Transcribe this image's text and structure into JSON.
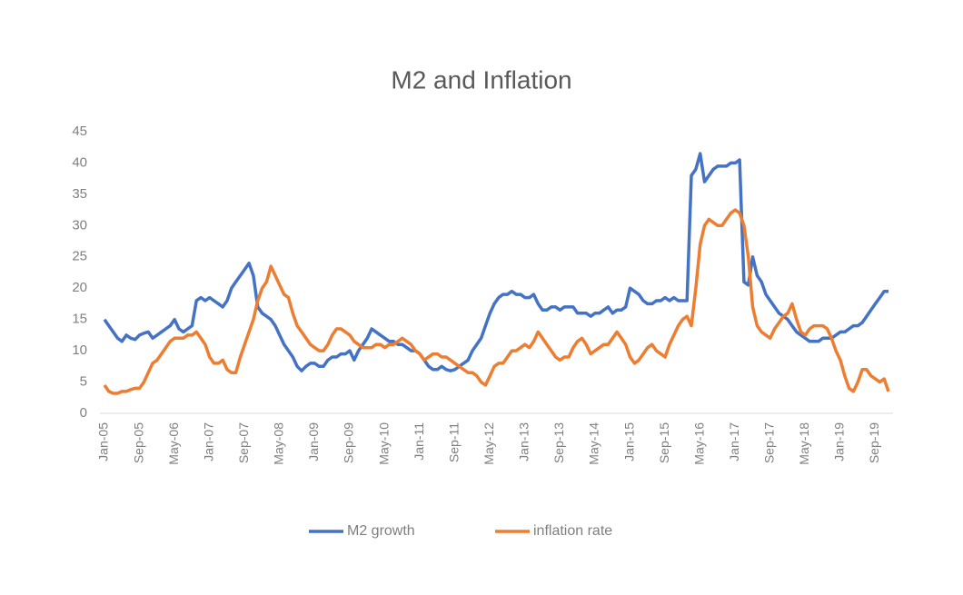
{
  "chart_data": {
    "type": "line",
    "title": "M2 and Inflation",
    "categories": [
      "Jan-05",
      null,
      null,
      null,
      null,
      null,
      null,
      null,
      "Sep-05",
      null,
      null,
      null,
      null,
      null,
      null,
      null,
      "May-06",
      null,
      null,
      null,
      null,
      null,
      null,
      null,
      "Jan-07",
      null,
      null,
      null,
      null,
      null,
      null,
      null,
      "Sep-07",
      null,
      null,
      null,
      null,
      null,
      null,
      null,
      "May-08",
      null,
      null,
      null,
      null,
      null,
      null,
      null,
      "Jan-09",
      null,
      null,
      null,
      null,
      null,
      null,
      null,
      "Sep-09",
      null,
      null,
      null,
      null,
      null,
      null,
      null,
      "May-10",
      null,
      null,
      null,
      null,
      null,
      null,
      null,
      "Jan-11",
      null,
      null,
      null,
      null,
      null,
      null,
      null,
      "Sep-11",
      null,
      null,
      null,
      null,
      null,
      null,
      null,
      "May-12",
      null,
      null,
      null,
      null,
      null,
      null,
      null,
      "Jan-13",
      null,
      null,
      null,
      null,
      null,
      null,
      null,
      "Sep-13",
      null,
      null,
      null,
      null,
      null,
      null,
      null,
      "May-14",
      null,
      null,
      null,
      null,
      null,
      null,
      null,
      "Jan-15",
      null,
      null,
      null,
      null,
      null,
      null,
      null,
      "Sep-15",
      null,
      null,
      null,
      null,
      null,
      null,
      null,
      "May-16",
      null,
      null,
      null,
      null,
      null,
      null,
      null,
      "Jan-17",
      null,
      null,
      null,
      null,
      null,
      null,
      null,
      "Sep-17",
      null,
      null,
      null,
      null,
      null,
      null,
      null,
      "May-18",
      null,
      null,
      null,
      null,
      null,
      null,
      null,
      "Jan-19",
      null,
      null,
      null,
      null,
      null,
      null,
      null,
      "Sep-19",
      null,
      null,
      null
    ],
    "series": [
      {
        "name": "M2 growth",
        "color": "#4472c4",
        "values": [
          15,
          14,
          13,
          12,
          11.5,
          12.5,
          12,
          11.8,
          12.5,
          12.8,
          13,
          12,
          12.5,
          13,
          13.5,
          14,
          15,
          13.5,
          13,
          13.5,
          14,
          18,
          18.5,
          18,
          18.5,
          18,
          17.5,
          17,
          18,
          20,
          21,
          22,
          23,
          24,
          22,
          17,
          16,
          15.5,
          15,
          14,
          12.5,
          11,
          10,
          9,
          7.5,
          6.8,
          7.5,
          8,
          8,
          7.5,
          7.5,
          8.5,
          9,
          9,
          9.5,
          9.5,
          10,
          8.5,
          10,
          11,
          12,
          13.5,
          13,
          12.5,
          12,
          11.5,
          11.5,
          11,
          11,
          10.5,
          10,
          10,
          9.5,
          8.5,
          7.5,
          7,
          7,
          7.5,
          7,
          6.8,
          7,
          7.5,
          8,
          8.5,
          10,
          11,
          12,
          14,
          16,
          17.5,
          18.5,
          19,
          19,
          19.5,
          19,
          19,
          18.5,
          18.5,
          19,
          17.5,
          16.5,
          16.5,
          17,
          17,
          16.5,
          17,
          17,
          17,
          16,
          16,
          16,
          15.5,
          16,
          16,
          16.5,
          17,
          16,
          16.5,
          16.5,
          17,
          20,
          19.5,
          19,
          18,
          17.5,
          17.5,
          18,
          18,
          18.5,
          18,
          18.5,
          18,
          18,
          18,
          38,
          39,
          41.5,
          37,
          38,
          39,
          39.5,
          39.5,
          39.5,
          40,
          40,
          40.5,
          21,
          20.5,
          25,
          22,
          21,
          19,
          18,
          17,
          16,
          15.5,
          15,
          14,
          13,
          12.5,
          12,
          11.5,
          11.5,
          11.5,
          12,
          12,
          12,
          12.5,
          13,
          13,
          13.5,
          14,
          14,
          14.5,
          15.5,
          16.5,
          17.5,
          18.5,
          19.5,
          19.5
        ]
      },
      {
        "name": "inflation rate",
        "color": "#ed7d31",
        "values": [
          4.5,
          3.5,
          3.2,
          3.2,
          3.5,
          3.5,
          3.8,
          4,
          4,
          5,
          6.5,
          8,
          8.5,
          9.5,
          10.5,
          11.5,
          12,
          12,
          12,
          12.5,
          12.5,
          13,
          12,
          11,
          9,
          8,
          8,
          8.5,
          7,
          6.5,
          6.5,
          9,
          11,
          13,
          15,
          18,
          20,
          21,
          23.5,
          22,
          20.5,
          19,
          18.5,
          16,
          14,
          13,
          12,
          11,
          10.5,
          10,
          10,
          11,
          12.5,
          13.5,
          13.5,
          13,
          12.5,
          11.5,
          11,
          10.5,
          10.5,
          10.5,
          11,
          11,
          10.5,
          11,
          11,
          11.5,
          12,
          11.5,
          11,
          10,
          9.5,
          8.5,
          9,
          9.5,
          9.5,
          9,
          9,
          8.5,
          8,
          7.5,
          7,
          6.5,
          6.5,
          6,
          5,
          4.5,
          6,
          7.5,
          8,
          8,
          9,
          10,
          10,
          10.5,
          11,
          10.5,
          11.5,
          13,
          12,
          11,
          10,
          9,
          8.5,
          9,
          9,
          10.5,
          11.5,
          12,
          11,
          9.5,
          10,
          10.5,
          11,
          11,
          12,
          13,
          12,
          11,
          9,
          8,
          8.5,
          9.5,
          10.5,
          11,
          10,
          9.5,
          9,
          11,
          12.5,
          14,
          15,
          15.5,
          14,
          20,
          27,
          30,
          31,
          30.5,
          30,
          30,
          31,
          32,
          32.5,
          32,
          30,
          25,
          17,
          14,
          13,
          12.5,
          12,
          13.5,
          14.5,
          15.5,
          16,
          17.5,
          15,
          13,
          12.5,
          13.5,
          14,
          14,
          14,
          13.5,
          12,
          10,
          8.5,
          6,
          4,
          3.5,
          5,
          7,
          7,
          6,
          5.5,
          5,
          5.5,
          3.5
        ]
      }
    ],
    "ylim": [
      0,
      45
    ],
    "yticks": [
      0,
      5,
      10,
      15,
      20,
      25,
      30,
      35,
      40,
      45
    ],
    "grid": false,
    "legend": "bottom"
  }
}
